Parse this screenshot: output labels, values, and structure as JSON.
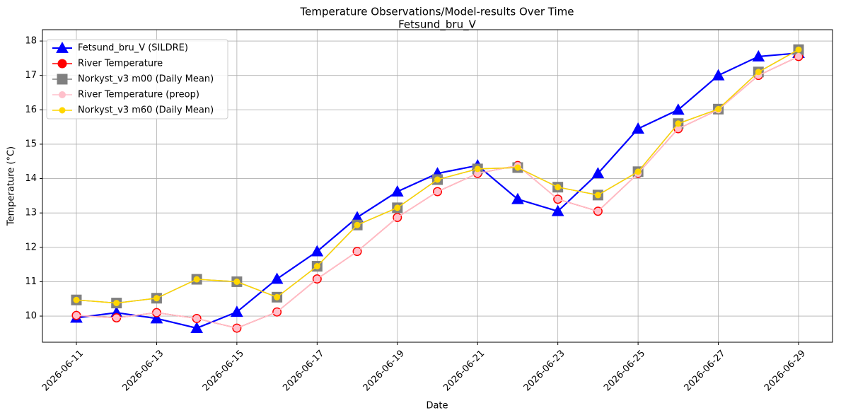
{
  "chart_data": {
    "type": "line",
    "title": "Temperature Observations/Model-results Over Time",
    "subtitle": "Fetsund_bru_V",
    "x_label": "Date",
    "y_label": "Temperature (°C)",
    "x": [
      "2026-06-11",
      "2026-06-12",
      "2026-06-13",
      "2026-06-14",
      "2026-06-15",
      "2026-06-16",
      "2026-06-17",
      "2026-06-18",
      "2026-06-19",
      "2026-06-20",
      "2026-06-21",
      "2026-06-22",
      "2026-06-23",
      "2026-06-24",
      "2026-06-25",
      "2026-06-26",
      "2026-06-27",
      "2026-06-28",
      "2026-06-29"
    ],
    "xticks": [
      "2026-06-11",
      "2026-06-13",
      "2026-06-15",
      "2026-06-17",
      "2026-06-19",
      "2026-06-21",
      "2026-06-23",
      "2026-06-25",
      "2026-06-27",
      "2026-06-29"
    ],
    "ylim": [
      9.24,
      18.33
    ],
    "yticks": [
      10,
      11,
      12,
      13,
      14,
      15,
      16,
      17,
      18
    ],
    "grid": true,
    "legend": "upper left",
    "series": [
      {
        "name": "Fetsund_bru_V (SILDRE)",
        "color": "#0000ff",
        "marker": "triangle",
        "values": [
          9.95,
          10.1,
          9.93,
          9.65,
          10.12,
          11.08,
          11.88,
          12.87,
          13.62,
          14.15,
          14.38,
          13.4,
          13.05,
          14.15,
          15.45,
          16.0,
          17.0,
          17.55,
          17.65
        ]
      },
      {
        "name": "River Temperature",
        "color": "#ff0000",
        "marker": "circle",
        "values": [
          10.02,
          9.95,
          10.1,
          9.93,
          9.65,
          10.12,
          11.08,
          11.88,
          12.87,
          13.62,
          14.15,
          14.38,
          13.4,
          13.05,
          14.15,
          15.45,
          16.0,
          17.0,
          17.55
        ]
      },
      {
        "name": "Norkyst_v3 m00 (Daily Mean)",
        "color": "#808080",
        "marker": "square",
        "values": [
          10.47,
          10.38,
          10.52,
          11.07,
          11.0,
          10.55,
          11.45,
          12.65,
          13.15,
          13.97,
          14.28,
          14.32,
          13.75,
          13.52,
          14.2,
          15.6,
          16.02,
          17.1,
          17.75
        ]
      },
      {
        "name": "River Temperature (preop)",
        "color": "#ffc0cb",
        "marker": "circle",
        "values": [
          10.02,
          9.95,
          10.1,
          9.93,
          9.65,
          10.12,
          11.08,
          11.88,
          12.87,
          13.62,
          14.15,
          14.38,
          13.4,
          13.05,
          14.15,
          15.45,
          16.0,
          17.0,
          17.55
        ]
      },
      {
        "name": "Norkyst_v3 m60 (Daily Mean)",
        "color": "#ffd700",
        "marker": "circle",
        "values": [
          10.47,
          10.38,
          10.52,
          11.07,
          11.0,
          10.55,
          11.45,
          12.65,
          13.15,
          13.97,
          14.28,
          14.32,
          13.75,
          13.52,
          14.2,
          15.6,
          16.02,
          17.1,
          17.75
        ]
      }
    ]
  }
}
